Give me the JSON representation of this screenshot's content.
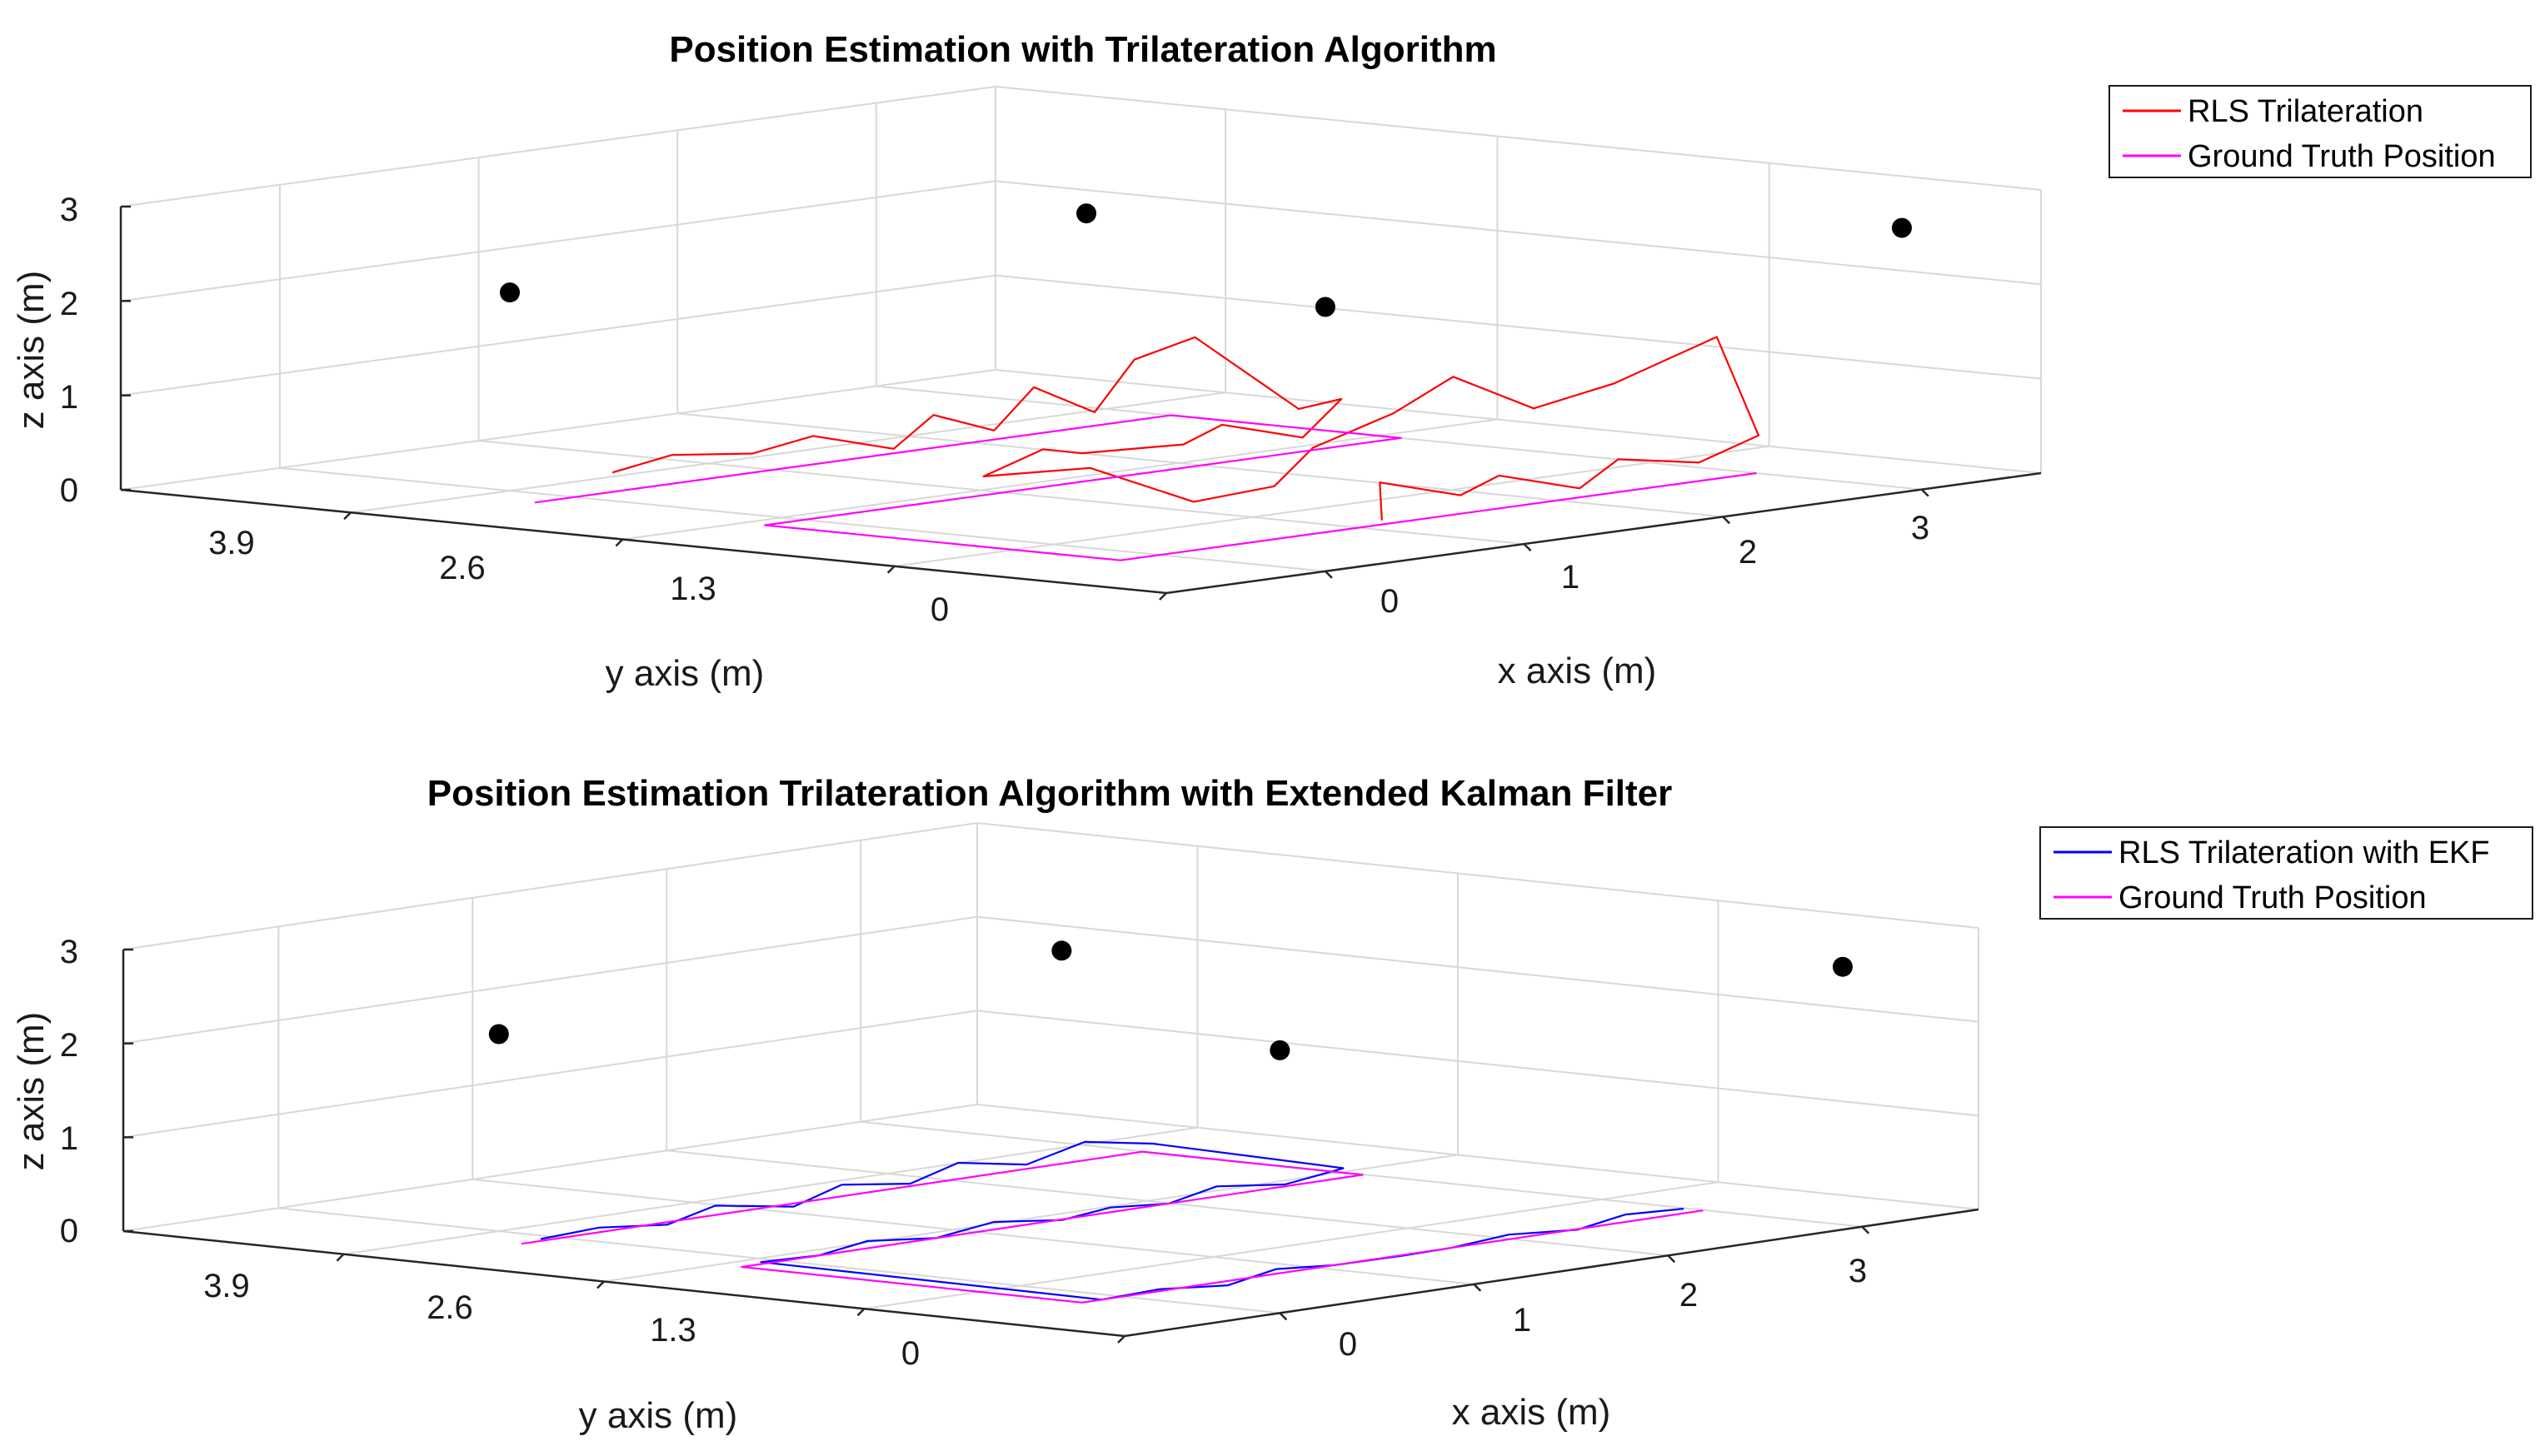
{
  "chart_data": [
    {
      "type": "line3d",
      "title": "Position Estimation with Trilateration Algorithm",
      "xlabel": "x axis (m)",
      "ylabel": "y axis (m)",
      "zlabel": "z axis (m)",
      "xticks": [
        "0",
        "1",
        "2",
        "3"
      ],
      "yticks": [
        "3.9",
        "2.6",
        "1.3",
        "0"
      ],
      "zticks": [
        "0",
        "1",
        "2",
        "3"
      ],
      "xlim": [
        -0.8,
        3.6
      ],
      "ylim": [
        0,
        5.0
      ],
      "zlim": [
        0,
        3
      ],
      "grid": true,
      "legend_position": "top-right",
      "anchors": [
        {
          "x": 0.0,
          "y": 3.9,
          "z": 2.1
        },
        {
          "x": 2.9,
          "y": 3.9,
          "z": 2.1
        },
        {
          "x": 0.0,
          "y": 0.0,
          "z": 2.8
        },
        {
          "x": 2.9,
          "y": 0.0,
          "z": 2.8
        }
      ],
      "series": [
        {
          "name": "RLS Trilateration",
          "color": "#ff0000",
          "x": [
            0.2,
            0.5,
            0.8,
            1.0,
            1.3,
            1.5,
            1.7,
            1.9,
            2.1,
            2.3,
            2.5,
            2.6,
            2.5,
            2.2,
            1.9,
            1.6,
            1.3,
            1.0,
            0.7,
            0.5,
            0.6,
            0.9,
            1.2,
            1.5,
            1.8,
            2.1,
            2.4,
            2.6,
            2.6,
            2.3,
            2.0,
            1.7,
            1.4,
            1.1,
            0.8,
            0.6
          ],
          "y": [
            3.6,
            3.6,
            3.5,
            3.4,
            3.3,
            3.3,
            3.2,
            3.2,
            3.1,
            3.1,
            3.0,
            2.6,
            2.3,
            2.2,
            2.3,
            2.2,
            2.4,
            2.3,
            2.3,
            1.6,
            1.2,
            1.1,
            1.2,
            1.1,
            1.1,
            1.0,
            0.9,
            0.6,
            0.4,
            0.4,
            0.5,
            0.4,
            0.5,
            0.4,
            0.5,
            0.3
          ],
          "z": [
            0.2,
            0.3,
            0.25,
            0.4,
            0.2,
            0.5,
            0.3,
            0.7,
            0.4,
            0.9,
            1.1,
            0.4,
            0.6,
            0.3,
            0.5,
            0.4,
            0.35,
            0.5,
            0.3,
            0.6,
            0.3,
            0.4,
            0.7,
            1.0,
            1.3,
            0.9,
            1.1,
            1.6,
            0.6,
            0.4,
            0.5,
            0.3,
            0.5,
            0.4,
            0.6,
            0.3
          ]
        },
        {
          "name": "Ground Truth Position",
          "color": "#ff00ff",
          "x": [
            -0.4,
            2.8,
            2.8,
            -0.4,
            -0.4,
            2.8
          ],
          "y": [
            3.4,
            3.4,
            2.3,
            2.3,
            0.6,
            0.6
          ],
          "z": [
            0.1,
            0.1,
            0.1,
            0.1,
            0.1,
            0.1
          ]
        }
      ]
    },
    {
      "type": "line3d",
      "title": "Position Estimation Trilateration Algorithm with Extended Kalman Filter",
      "xlabel": "x axis (m)",
      "ylabel": "y axis (m)",
      "zlabel": "z axis (m)",
      "xticks": [
        "0",
        "1",
        "2",
        "3"
      ],
      "yticks": [
        "3.9",
        "2.6",
        "1.3",
        "0"
      ],
      "zticks": [
        "0",
        "1",
        "2",
        "3"
      ],
      "xlim": [
        -0.8,
        3.6
      ],
      "ylim": [
        0,
        5.0
      ],
      "zlim": [
        0,
        3
      ],
      "grid": true,
      "legend_position": "top-right",
      "anchors": [
        {
          "x": 0.0,
          "y": 3.9,
          "z": 2.1
        },
        {
          "x": 2.9,
          "y": 3.9,
          "z": 2.1
        },
        {
          "x": 0.0,
          "y": 0.0,
          "z": 2.8
        },
        {
          "x": 2.9,
          "y": 0.0,
          "z": 2.8
        }
      ],
      "series": [
        {
          "name": "RLS Trilateration with EKF",
          "color": "#0000ff",
          "x": [
            -0.3,
            0.0,
            0.3,
            0.6,
            0.9,
            1.2,
            1.5,
            1.8,
            2.1,
            2.4,
            2.7,
            2.8,
            2.7,
            2.4,
            2.1,
            1.8,
            1.5,
            1.2,
            0.9,
            0.6,
            0.3,
            0.0,
            -0.3,
            -0.3,
            0.0,
            0.3,
            0.6,
            0.9,
            1.2,
            1.5,
            1.8,
            2.1,
            2.4,
            2.7
          ],
          "y": [
            3.4,
            3.4,
            3.35,
            3.4,
            3.3,
            3.35,
            3.3,
            3.35,
            3.3,
            3.3,
            3.25,
            2.4,
            2.3,
            2.3,
            2.35,
            2.3,
            2.3,
            2.25,
            2.3,
            2.3,
            2.35,
            2.3,
            2.3,
            0.6,
            0.6,
            0.55,
            0.6,
            0.6,
            0.55,
            0.6,
            0.6,
            0.55,
            0.6,
            0.6
          ],
          "z": [
            0.12,
            0.15,
            0.1,
            0.2,
            0.12,
            0.25,
            0.18,
            0.3,
            0.2,
            0.35,
            0.25,
            0.15,
            0.2,
            0.12,
            0.18,
            0.1,
            0.15,
            0.12,
            0.18,
            0.1,
            0.15,
            0.1,
            0.12,
            0.1,
            0.12,
            0.08,
            0.15,
            0.1,
            0.12,
            0.1,
            0.15,
            0.12,
            0.18,
            0.15
          ]
        },
        {
          "name": "Ground Truth Position",
          "color": "#ff00ff",
          "x": [
            -0.4,
            2.8,
            2.8,
            -0.4,
            -0.4,
            2.8
          ],
          "y": [
            3.4,
            3.4,
            2.3,
            2.3,
            0.6,
            0.6
          ],
          "z": [
            0.1,
            0.1,
            0.1,
            0.1,
            0.1,
            0.1
          ]
        }
      ]
    }
  ]
}
